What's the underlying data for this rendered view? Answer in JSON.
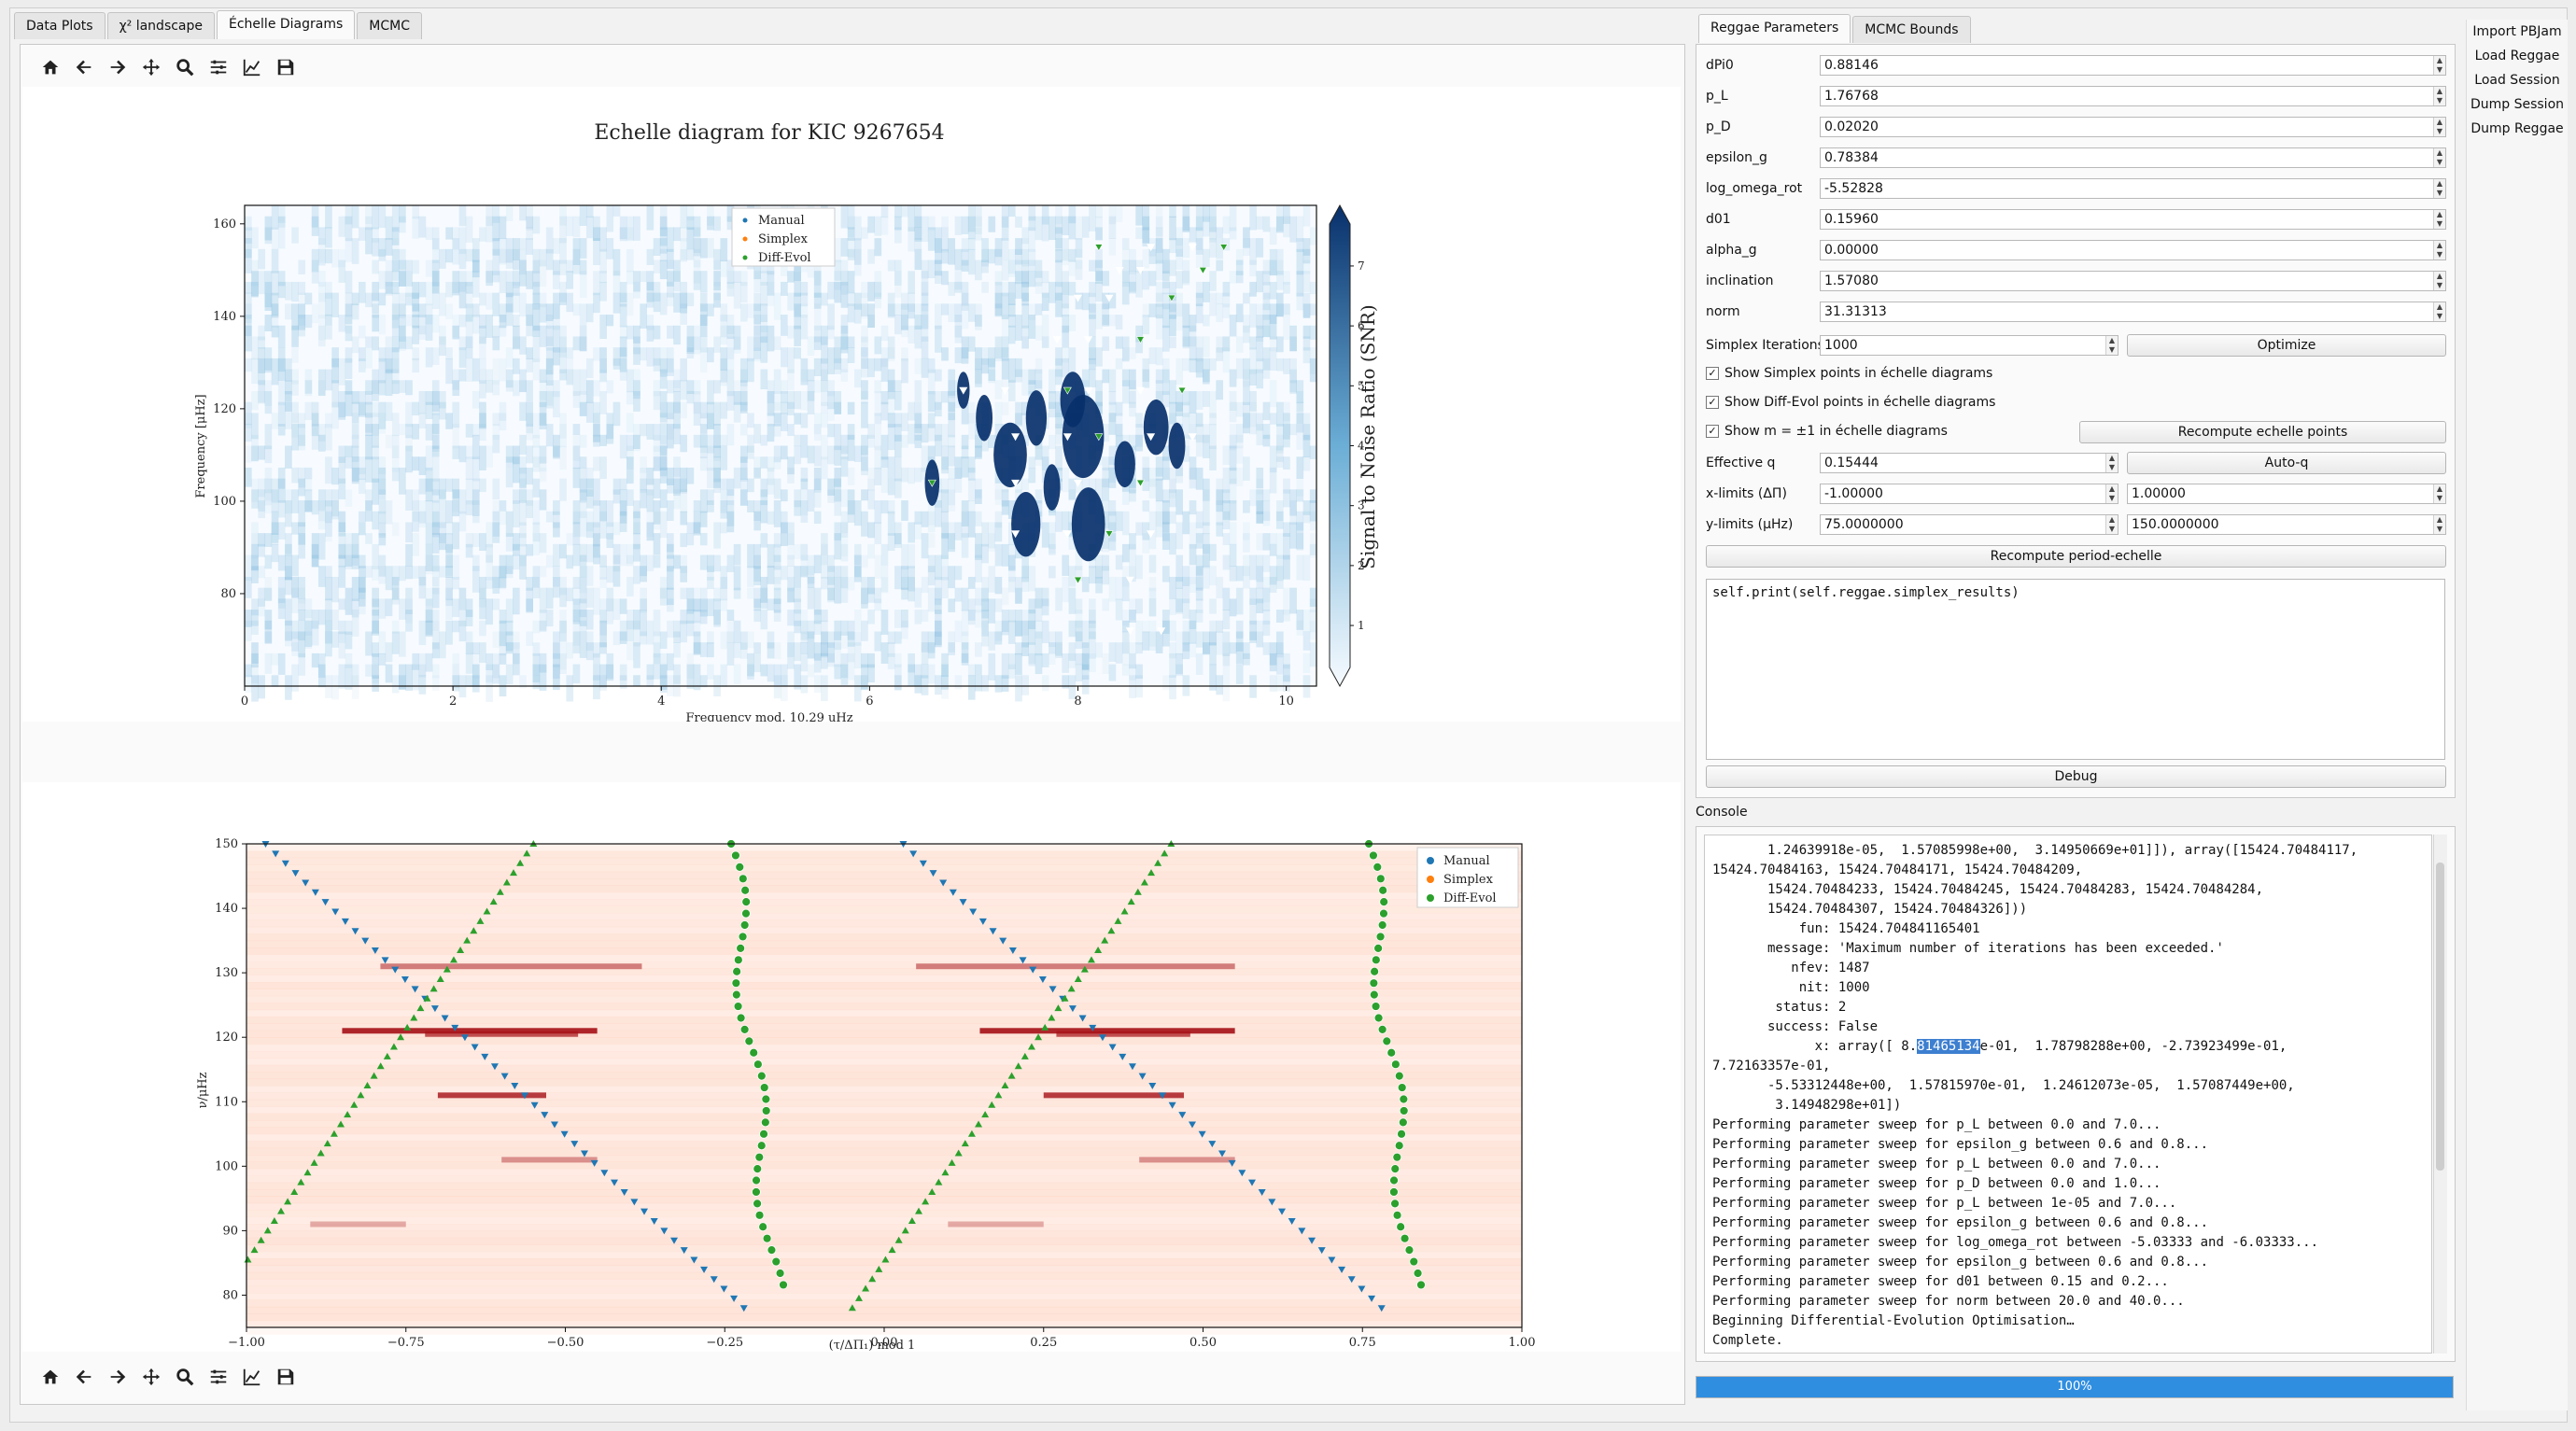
{
  "tabs": [
    "Data Plots",
    "χ² landscape",
    "Échelle Diagrams",
    "MCMC"
  ],
  "active_tab_index": 2,
  "toolbar_icons": [
    "home-icon",
    "back-arrow-icon",
    "forward-arrow-icon",
    "pan-icon",
    "zoom-icon",
    "configure-icon",
    "edit-curve-icon",
    "save-icon"
  ],
  "right_tabs": [
    "Reggae Parameters",
    "MCMC Bounds"
  ],
  "params": [
    {
      "label": "dPi0",
      "value": "0.88146"
    },
    {
      "label": "p_L",
      "value": "1.76768"
    },
    {
      "label": "p_D",
      "value": "0.02020"
    },
    {
      "label": "epsilon_g",
      "value": "0.78384"
    },
    {
      "label": "log_omega_rot",
      "value": "-5.52828"
    },
    {
      "label": "d01",
      "value": "0.15960"
    },
    {
      "label": "alpha_g",
      "value": "0.00000"
    },
    {
      "label": "inclination",
      "value": "1.57080"
    },
    {
      "label": "norm",
      "value": "31.31313"
    }
  ],
  "simplex": {
    "label": "Simplex Iterations",
    "value": "1000",
    "button": "Optimize"
  },
  "checks": [
    {
      "label": "Show Simplex points in échelle diagrams",
      "checked": true
    },
    {
      "label": "Show Diff-Evol points in échelle diagrams",
      "checked": true
    },
    {
      "label": "Show m = ±1 in échelle diagrams",
      "checked": true
    }
  ],
  "recompute_points_button": "Recompute echelle points",
  "effective_q": {
    "label": "Effective q",
    "value": "0.15444",
    "button": "Auto-q"
  },
  "xlimits": {
    "label": "x-limits (ΔΠ)",
    "min": "-1.00000",
    "max": "1.00000"
  },
  "ylimits": {
    "label": "y-limits (μHz)",
    "min": "75.0000000",
    "max": "150.0000000"
  },
  "recompute_period_button": "Recompute period-echelle",
  "code_input": "self.print(self.reggae.simplex_results)",
  "debug_button": "Debug",
  "console_label": "Console",
  "console_lines": [
    "       1.24639918e-05,  1.57085998e+00,  3.14950669e+01]]), array([15424.70484117,",
    "15424.70484163, 15424.70484171, 15424.70484209,",
    "       15424.70484233, 15424.70484245, 15424.70484283, 15424.70484284,",
    "       15424.70484307, 15424.70484326]))",
    "           fun: 15424.704841165401",
    "       message: 'Maximum number of iterations has been exceeded.'",
    "          nfev: 1487",
    "           nit: 1000",
    "        status: 2",
    "       success: False",
    "             x: array([ 8.",
    "7.72163357e-01,",
    "       -5.53312448e+00,  1.57815970e-01,  1.24612073e-05,  1.57087449e+00,",
    "        3.14948298e+01])",
    "Performing parameter sweep for p_L between 0.0 and 7.0...",
    "Performing parameter sweep for epsilon_g between 0.6 and 0.8...",
    "Performing parameter sweep for p_L between 0.0 and 7.0...",
    "Performing parameter sweep for p_D between 0.0 and 1.0...",
    "Performing parameter sweep for p_L between 1e-05 and 7.0...",
    "Performing parameter sweep for epsilon_g between 0.6 and 0.8...",
    "Performing parameter sweep for log_omega_rot between -5.03333 and -6.03333...",
    "Performing parameter sweep for epsilon_g between 0.6 and 0.8...",
    "Performing parameter sweep for d01 between 0.15 and 0.2...",
    "Performing parameter sweep for norm between 20.0 and 40.0...",
    "Beginning Differential-Evolution Optimisation…",
    "Complete."
  ],
  "console_highlight": "81465134",
  "console_highlight_rest": "e-01,  1.78798288e+00, -2.73923499e-01,",
  "progress": {
    "fraction": 1.0,
    "text": "100%"
  },
  "sidebar": [
    "Import PBJam",
    "Load Reggae",
    "Load Session",
    "Dump Session",
    "Dump Reggae"
  ],
  "colors": {
    "manual": "#1f77b4",
    "simplex": "#ff7f0e",
    "diffevol": "#2ca02c",
    "progress": "#2f8ee0"
  },
  "chart_data": [
    {
      "type": "heatmap",
      "title": "Echelle diagram for KIC 9267654",
      "xlabel": "Frequency mod. 10.29 uHz",
      "ylabel": "Frequency [μHz]",
      "xlim": [
        0,
        10.29
      ],
      "ylim": [
        60,
        164
      ],
      "xticks": [
        "0",
        "2",
        "4",
        "6",
        "8",
        "10"
      ],
      "yticks": [
        "80",
        "100",
        "120",
        "140",
        "160"
      ],
      "colorbar_label": "Signal to Noise Ratio (SNR)",
      "colorbar_ticks": [
        "1",
        "2",
        "3",
        "4",
        "5",
        "6",
        "7"
      ],
      "legend": [
        "Manual",
        "Simplex",
        "Diff-Evol"
      ],
      "legend_position": "top-center",
      "colormap": "Blues"
    },
    {
      "type": "heatmap",
      "title": "",
      "xlabel": "(τ/ΔΠ₁) mod 1",
      "ylabel": "ν/μHz",
      "xlim": [
        -1.0,
        1.0
      ],
      "ylim": [
        75,
        150
      ],
      "xticks": [
        "−1.00",
        "−0.75",
        "−0.50",
        "−0.25",
        "0.00",
        "0.25",
        "0.50",
        "0.75",
        "1.00"
      ],
      "yticks": [
        "80",
        "90",
        "100",
        "110",
        "120",
        "130",
        "140",
        "150"
      ],
      "legend": [
        "Manual",
        "Simplex",
        "Diff-Evol"
      ],
      "legend_position": "top-right",
      "colormap": "Reds"
    }
  ]
}
